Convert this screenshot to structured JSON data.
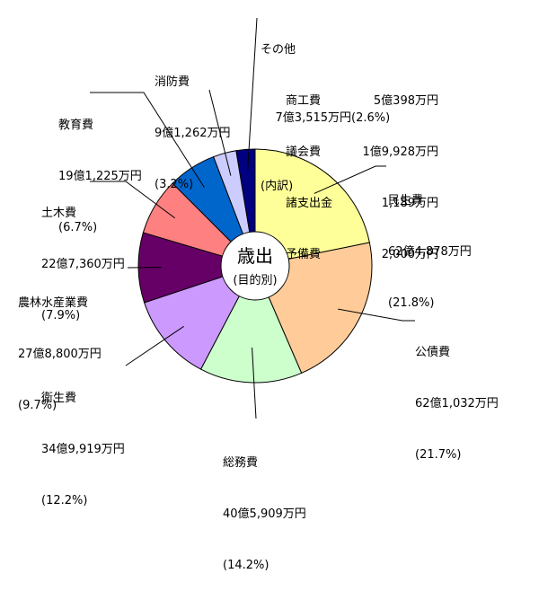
{
  "chart_data": {
    "type": "pie",
    "center_title": "歳出",
    "center_subtitle": "(目的別)",
    "slices": [
      {
        "name": "民生費",
        "amount": "62億4,878万円",
        "pct_label": "(21.8%)",
        "value": 21.8,
        "color": "#ffff99"
      },
      {
        "name": "公債費",
        "amount": "62億1,032万円",
        "pct_label": "(21.7%)",
        "value": 21.7,
        "color": "#ffcc99"
      },
      {
        "name": "総務費",
        "amount": "40億5,909万円",
        "pct_label": "(14.2%)",
        "value": 14.2,
        "color": "#ccffcc"
      },
      {
        "name": "衛生費",
        "amount": "34億9,919万円",
        "pct_label": "(12.2%)",
        "value": 12.2,
        "color": "#cc99ff"
      },
      {
        "name": "農林水産業費",
        "amount": "27億8,800万円",
        "pct_label": "(9.7%)",
        "value": 9.7,
        "color": "#660066"
      },
      {
        "name": "土木費",
        "amount": "22億7,360万円",
        "pct_label": "(7.9%)",
        "value": 7.9,
        "color": "#ff8080"
      },
      {
        "name": "教育費",
        "amount": "19億1,225万円",
        "pct_label": "(6.7%)",
        "value": 6.7,
        "color": "#0066cc"
      },
      {
        "name": "消防費",
        "amount": "9億1,262万円",
        "pct_label": "(3.2%)",
        "value": 3.2,
        "color": "#ccccff"
      },
      {
        "name": "その他",
        "amount": "7億3,515万円",
        "pct_label": "(2.6%)",
        "value": 2.6,
        "color": "#000080"
      }
    ],
    "other_breakdown": {
      "title": "(内訳)",
      "items": [
        {
          "name": "商工費",
          "amount": "5億398万円"
        },
        {
          "name": "議会費",
          "amount": "1億9,928万円"
        },
        {
          "name": "諸支出金",
          "amount": "1,189万円"
        },
        {
          "name": "予備費",
          "amount": "2,000万円"
        }
      ]
    }
  }
}
